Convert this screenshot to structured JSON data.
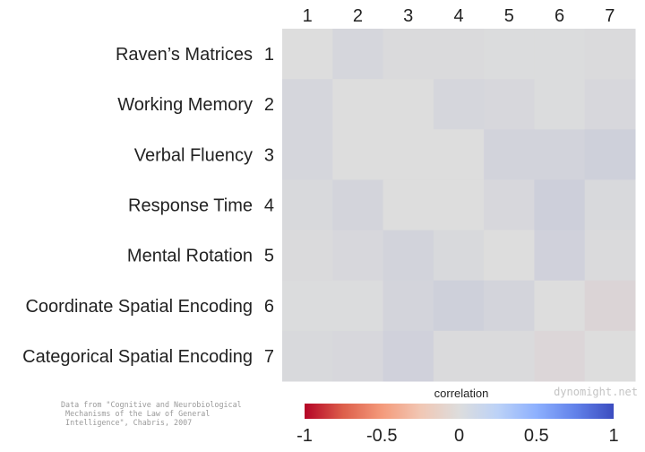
{
  "chart_data": {
    "type": "heatmap",
    "columns": [
      "1",
      "2",
      "3",
      "4",
      "5",
      "6",
      "7"
    ],
    "rows": [
      {
        "label": "Raven’s Matrices",
        "number": "1"
      },
      {
        "label": "Working Memory",
        "number": "2"
      },
      {
        "label": "Verbal Fluency",
        "number": "3"
      },
      {
        "label": "Response Time",
        "number": "4"
      },
      {
        "label": "Mental Rotation",
        "number": "5"
      },
      {
        "label": "Coordinate Spatial Encoding",
        "number": "6"
      },
      {
        "label": "Categorical Spatial Encoding",
        "number": "7"
      }
    ],
    "values": [
      [
        0.0,
        0.05,
        0.02,
        0.02,
        0.01,
        0.01,
        0.02
      ],
      [
        0.05,
        0.0,
        0.0,
        0.05,
        0.04,
        0.01,
        0.04
      ],
      [
        0.05,
        0.0,
        0.0,
        0.0,
        0.07,
        0.07,
        0.09
      ],
      [
        0.03,
        0.06,
        0.0,
        0.0,
        0.04,
        0.1,
        0.03
      ],
      [
        0.02,
        0.04,
        0.07,
        0.03,
        0.0,
        0.08,
        0.02
      ],
      [
        0.01,
        0.01,
        0.06,
        0.09,
        0.06,
        0.0,
        -0.04
      ],
      [
        0.03,
        0.04,
        0.08,
        0.02,
        0.02,
        -0.03,
        0.0
      ]
    ],
    "colorbar": {
      "label": "correlation",
      "range": [
        -1,
        1
      ],
      "ticks": [
        {
          "value": -1,
          "label": "-1"
        },
        {
          "value": -0.5,
          "label": "-0.5"
        },
        {
          "value": 0,
          "label": "0"
        },
        {
          "value": 0.5,
          "label": "0.5"
        },
        {
          "value": 1,
          "label": "1"
        }
      ],
      "colormap": "coolwarm"
    },
    "colors": {
      "negative": "#b40426",
      "zero": "#dddddd",
      "positive": "#3b4cc0"
    }
  },
  "source_note": "Data from \"Cognitive and Neurobiological\n Mechanisms of the Law of General\n Intelligence\", Chabris, 2007",
  "watermark": "dynomight.net"
}
